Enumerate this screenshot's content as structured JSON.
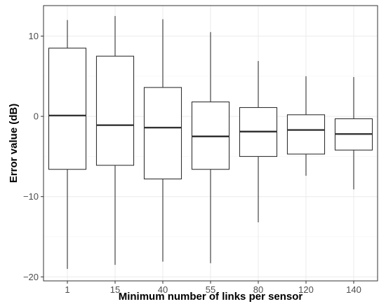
{
  "chart_data": {
    "type": "box",
    "xlabel": "Minimum number of links per sensor",
    "ylabel": "Error value (dB)",
    "categories": [
      "1",
      "15",
      "40",
      "55",
      "80",
      "120",
      "140"
    ],
    "y_ticks": [
      10,
      0,
      -10,
      -20
    ],
    "y_tick_labels": [
      "10",
      "0",
      "−10",
      "−20"
    ],
    "ylim": [
      -20.5,
      13.8
    ],
    "grid": true,
    "boxes": [
      {
        "category": "1",
        "min": -19.0,
        "q1": -6.6,
        "median": 0.1,
        "q3": 8.5,
        "max": 12.0
      },
      {
        "category": "15",
        "min": -18.5,
        "q1": -6.1,
        "median": -1.1,
        "q3": 7.5,
        "max": 12.5
      },
      {
        "category": "40",
        "min": -18.1,
        "q1": -7.8,
        "median": -1.4,
        "q3": 3.6,
        "max": 12.1
      },
      {
        "category": "55",
        "min": -18.3,
        "q1": -6.6,
        "median": -2.5,
        "q3": 1.8,
        "max": 10.5
      },
      {
        "category": "80",
        "min": -13.2,
        "q1": -5.0,
        "median": -1.9,
        "q3": 1.1,
        "max": 6.9
      },
      {
        "category": "120",
        "min": -7.4,
        "q1": -4.7,
        "median": -1.7,
        "q3": 0.2,
        "max": 5.0
      },
      {
        "category": "140",
        "min": -9.1,
        "q1": -4.2,
        "median": -2.2,
        "q3": -0.3,
        "max": 4.9
      }
    ]
  }
}
